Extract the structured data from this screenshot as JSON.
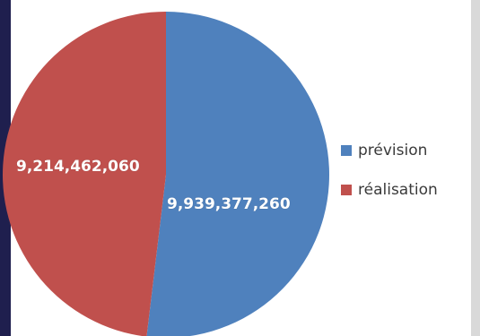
{
  "chart_data": {
    "type": "pie",
    "categories": [
      "prévision",
      "réalisation"
    ],
    "values": [
      9939377260,
      9214462060
    ],
    "value_labels": [
      "9,939,377,260",
      "9,214,462,060"
    ],
    "colors": [
      "#4f81bd",
      "#c0504d"
    ],
    "legend": "right",
    "title": ""
  }
}
